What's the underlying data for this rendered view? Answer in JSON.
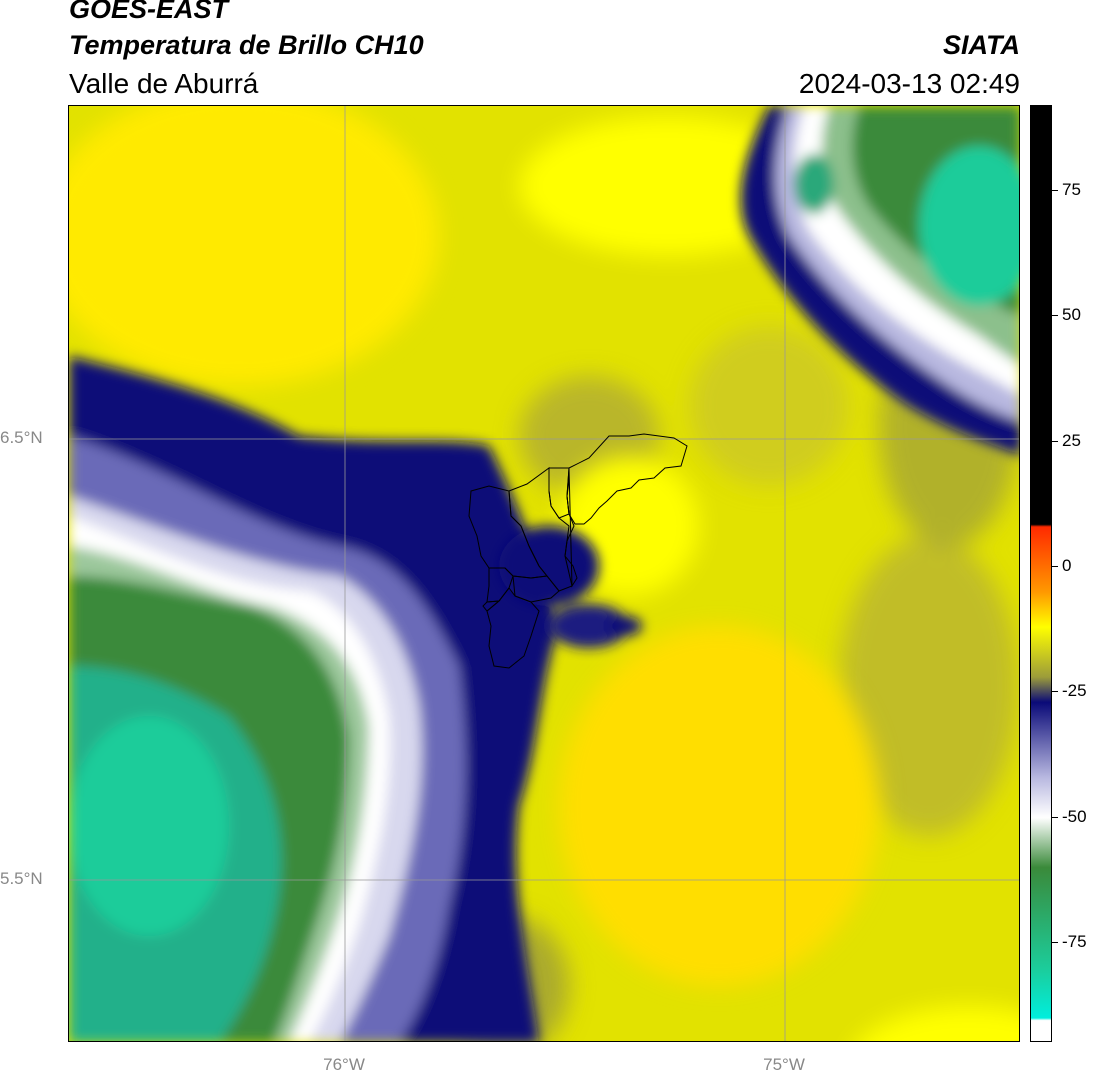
{
  "header": {
    "title": "GOES-EAST",
    "subtitle": "Temperatura de Brillo CH10",
    "region": "Valle de Aburrá",
    "organization": "SIATA",
    "timestamp": "2024-03-13 02:49"
  },
  "map": {
    "latitude_labels": [
      "6.5°N",
      "5.5°N"
    ],
    "longitude_labels": [
      "76°W",
      "75°W"
    ],
    "colors": {
      "yellow": "#ffff00",
      "olive": "#9c9c3a",
      "navy": "#0a0a78",
      "lavender": "#b8b8e0",
      "white": "#ffffff",
      "forest_green": "#3a8a3a",
      "teal": "#1ccc9a",
      "gridline": "#999999",
      "boundary": "#000000"
    }
  },
  "colorbar": {
    "tick_labels": [
      "75",
      "50",
      "25",
      "0",
      "-25",
      "-50",
      "-75"
    ],
    "tick_values": [
      75,
      50,
      25,
      0,
      -25,
      -50,
      -75
    ],
    "range": [
      -95,
      92
    ],
    "stops": [
      {
        "value": 92,
        "color": "#000000"
      },
      {
        "value": 8.5,
        "color": "#000000"
      },
      {
        "value": 8,
        "color": "#ff2a00"
      },
      {
        "value": -5,
        "color": "#ff9900"
      },
      {
        "value": -12,
        "color": "#ffff00"
      },
      {
        "value": -22,
        "color": "#9c9c3a"
      },
      {
        "value": -27,
        "color": "#0a0a78"
      },
      {
        "value": -42,
        "color": "#b8b8e0"
      },
      {
        "value": -50,
        "color": "#ffffff"
      },
      {
        "value": -60,
        "color": "#3a8a3a"
      },
      {
        "value": -80,
        "color": "#1ccc9a"
      },
      {
        "value": -90,
        "color": "#00eedd"
      },
      {
        "value": -90.5,
        "color": "#ffffff"
      },
      {
        "value": -95,
        "color": "#ffffff"
      }
    ]
  }
}
